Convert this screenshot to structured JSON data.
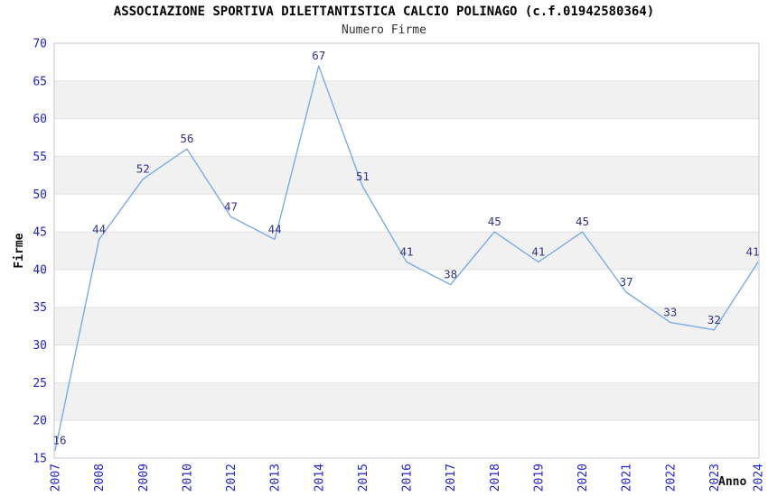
{
  "header": {
    "title": "ASSOCIAZIONE SPORTIVA DILETTANTISTICA CALCIO POLINAGO (c.f.01942580364)",
    "subtitle": "Numero Firme"
  },
  "chart_data": {
    "type": "line",
    "title": "ASSOCIAZIONE SPORTIVA DILETTANTISTICA CALCIO POLINAGO (c.f.01942580364)",
    "subtitle": "Numero Firme",
    "xlabel": "Anno",
    "ylabel": "Firme",
    "categories": [
      "2007",
      "2008",
      "2009",
      "2010",
      "2012",
      "2013",
      "2014",
      "2015",
      "2016",
      "2017",
      "2018",
      "2019",
      "2020",
      "2021",
      "2022",
      "2023",
      "2024"
    ],
    "series": [
      {
        "name": "Numero Firme",
        "values": [
          16,
          44,
          52,
          56,
          47,
          44,
          67,
          51,
          41,
          38,
          45,
          41,
          45,
          37,
          33,
          32,
          41
        ]
      }
    ],
    "ylim": [
      15,
      70
    ],
    "ytick_step": 5,
    "yticks": [
      15,
      20,
      25,
      30,
      35,
      40,
      45,
      50,
      55,
      60,
      65,
      70
    ],
    "grid": "alternating-horizontal-bands",
    "legend": "none",
    "data_labels_visible": true,
    "x_tick_rotation_deg": -90,
    "colors": {
      "line": "#7aace6",
      "tick_label": "#2222cc",
      "data_label": "#333385",
      "band": "#f1f1f1",
      "grid_line": "#e3e3e3",
      "plot_border": "#c9c9c9",
      "title": "#000000",
      "subtitle": "#333333",
      "axis_title": "#111111",
      "background": "#ffffff"
    }
  }
}
